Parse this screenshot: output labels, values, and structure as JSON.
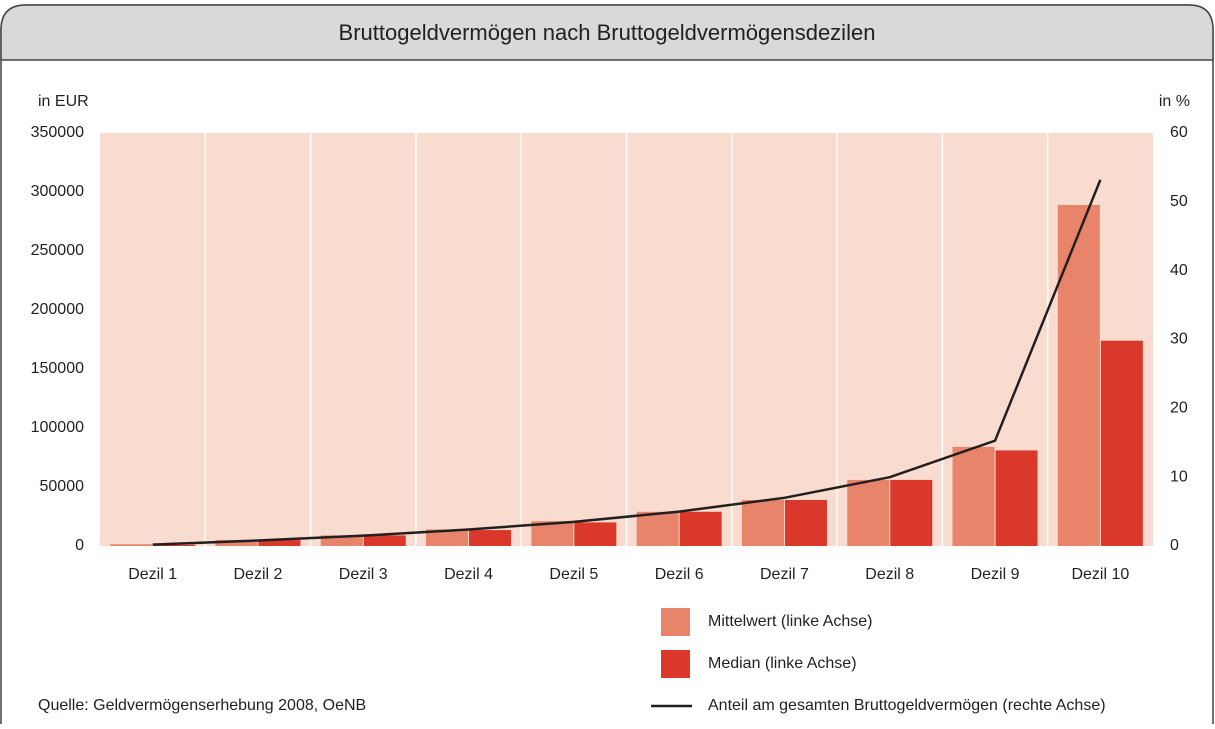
{
  "chart_data": {
    "type": "bar",
    "title": "Bruttogeldvermögen nach Bruttogeldvermögensdezilen",
    "y_axis_label": "in EUR",
    "y2_axis_label": "in %",
    "source": "Quelle: Geldvermögenserhebung 2008, OeNB",
    "categories": [
      "Dezil 1",
      "Dezil 2",
      "Dezil 3",
      "Dezil 4",
      "Dezil 5",
      "Dezil 6",
      "Dezil 7",
      "Dezil 8",
      "Dezil 9",
      "Dezil 10"
    ],
    "series": [
      {
        "name": "Mittelwert (linke Achse)",
        "color": "#e8846a",
        "type": "bar",
        "values": [
          1500,
          5000,
          9000,
          14000,
          21000,
          29000,
          39000,
          56000,
          84000,
          289000
        ]
      },
      {
        "name": "Median (linke Achse)",
        "color": "#d9382a",
        "type": "bar",
        "values": [
          1000,
          5000,
          9000,
          13500,
          20000,
          29000,
          39000,
          56000,
          81000,
          174000
        ]
      },
      {
        "name": "Anteil am gesamten Bruttogeldvermögen (rechte Achse)",
        "color": "#231f20",
        "type": "line",
        "axis": "y2",
        "values": [
          0.2,
          0.8,
          1.5,
          2.4,
          3.5,
          5,
          7,
          10,
          15.3,
          53.2
        ]
      }
    ],
    "ylim": [
      0,
      350000
    ],
    "yticks": [
      0,
      50000,
      100000,
      150000,
      200000,
      250000,
      300000,
      350000
    ],
    "y2lim": [
      0,
      60
    ],
    "y2ticks": [
      0,
      10,
      20,
      30,
      40,
      50,
      60
    ],
    "plot_background": "#f9dcd0"
  }
}
